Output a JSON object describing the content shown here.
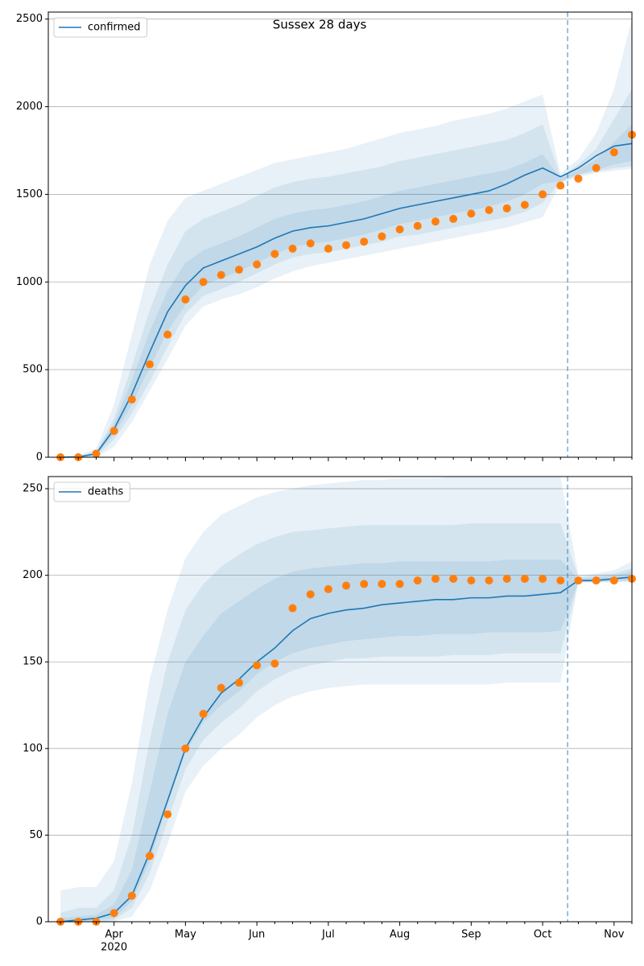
{
  "chart_data": [
    {
      "type": "line",
      "title": "Sussex 28 days",
      "categories": [
        null,
        null,
        null,
        null,
        null,
        null,
        null,
        null,
        null,
        null,
        null,
        null,
        null,
        null,
        null,
        null,
        null,
        null,
        null,
        null,
        null,
        null,
        null,
        null,
        null,
        null,
        null,
        null,
        null,
        null,
        null,
        null,
        null
      ],
      "series": [
        {
          "name": "confirmed",
          "color": "#1f77b4",
          "values": [
            0,
            2,
            20,
            160,
            360,
            600,
            830,
            980,
            1080,
            1120,
            1160,
            1200,
            1250,
            1290,
            1310,
            1320,
            1340,
            1360,
            1390,
            1420,
            1440,
            1460,
            1480,
            1500,
            1520,
            1560,
            1610,
            1650,
            1600,
            1650,
            1720,
            1775,
            1790
          ]
        }
      ],
      "points": {
        "color": "#ff7f0e",
        "values": [
          0,
          0,
          20,
          150,
          330,
          530,
          700,
          900,
          1000,
          1040,
          1070,
          1100,
          1160,
          1190,
          1220,
          1190,
          1210,
          1230,
          1260,
          1300,
          1320,
          1345,
          1360,
          1390,
          1410,
          1420,
          1440,
          1500,
          1550,
          1590,
          1650,
          1740,
          1840
        ]
      },
      "band_color": "#1f77b4",
      "bands": [
        {
          "upper": [
            0,
            10,
            50,
            300,
            700,
            1100,
            1350,
            1480,
            1520,
            1560,
            1600,
            1640,
            1680,
            1700,
            1720,
            1740,
            1760,
            1790,
            1820,
            1850,
            1870,
            1890,
            1920,
            1940,
            1960,
            1990,
            2030,
            2070,
            1620,
            1700,
            1850,
            2100,
            2500
          ],
          "lower": [
            0,
            0,
            0,
            60,
            200,
            380,
            560,
            750,
            860,
            900,
            930,
            970,
            1020,
            1060,
            1090,
            1110,
            1130,
            1150,
            1170,
            1190,
            1210,
            1230,
            1250,
            1270,
            1290,
            1310,
            1340,
            1370,
            1560,
            1600,
            1620,
            1635,
            1645
          ]
        },
        {
          "upper": [
            0,
            5,
            35,
            220,
            520,
            840,
            1100,
            1290,
            1360,
            1400,
            1440,
            1490,
            1540,
            1570,
            1590,
            1600,
            1620,
            1640,
            1660,
            1690,
            1710,
            1730,
            1750,
            1770,
            1790,
            1810,
            1850,
            1900,
            1600,
            1670,
            1760,
            1930,
            2100
          ],
          "lower": [
            0,
            0,
            5,
            100,
            250,
            430,
            630,
            820,
            920,
            960,
            1000,
            1050,
            1100,
            1140,
            1160,
            1170,
            1190,
            1210,
            1230,
            1260,
            1270,
            1290,
            1310,
            1330,
            1350,
            1370,
            1400,
            1450,
            1570,
            1610,
            1630,
            1650,
            1660
          ]
        },
        {
          "upper": [
            0,
            3,
            28,
            190,
            440,
            720,
            950,
            1110,
            1180,
            1220,
            1260,
            1310,
            1360,
            1390,
            1410,
            1420,
            1440,
            1460,
            1490,
            1520,
            1540,
            1560,
            1580,
            1600,
            1620,
            1640,
            1680,
            1730,
            1590,
            1640,
            1700,
            1800,
            1900
          ],
          "lower": [
            0,
            0,
            12,
            130,
            300,
            510,
            720,
            870,
            980,
            1020,
            1060,
            1110,
            1160,
            1200,
            1220,
            1230,
            1250,
            1270,
            1300,
            1330,
            1350,
            1370,
            1390,
            1410,
            1430,
            1460,
            1500,
            1560,
            1575,
            1615,
            1640,
            1670,
            1690
          ]
        }
      ],
      "ylim": [
        0,
        2540
      ],
      "yticks": [
        0,
        500,
        1000,
        1500,
        2000,
        2500
      ],
      "grid": true,
      "legend": "upper left"
    },
    {
      "type": "line",
      "categories": [
        null,
        null,
        null,
        "Apr",
        null,
        null,
        null,
        "May",
        null,
        null,
        null,
        "Jun",
        null,
        null,
        null,
        "Jul",
        null,
        null,
        null,
        "Aug",
        null,
        null,
        null,
        "Sep",
        null,
        null,
        null,
        "Oct",
        null,
        null,
        null,
        "Nov",
        null
      ],
      "x_sublabel": "2020",
      "series": [
        {
          "name": "deaths",
          "color": "#1f77b4",
          "values": [
            0,
            1,
            2,
            5,
            15,
            40,
            70,
            100,
            118,
            132,
            140,
            150,
            158,
            168,
            175,
            178,
            180,
            181,
            183,
            184,
            185,
            186,
            186,
            187,
            187,
            188,
            188,
            189,
            190,
            197,
            197,
            198,
            199
          ]
        }
      ],
      "points": {
        "color": "#ff7f0e",
        "values": [
          0,
          0,
          0,
          5,
          15,
          38,
          62,
          100,
          120,
          135,
          138,
          148,
          149,
          181,
          189,
          192,
          194,
          195,
          195,
          195,
          197,
          198,
          198,
          197,
          197,
          198,
          198,
          198,
          197,
          197,
          197,
          197,
          198
        ]
      },
      "band_color": "#1f77b4",
      "bands": [
        {
          "upper": [
            18,
            20,
            20,
            35,
            80,
            140,
            180,
            210,
            225,
            235,
            240,
            245,
            248,
            250,
            252,
            253,
            254,
            255,
            255,
            256,
            256,
            256,
            257,
            257,
            257,
            257,
            257,
            257,
            257,
            200,
            201,
            203,
            208
          ],
          "lower": [
            0,
            0,
            0,
            0,
            3,
            18,
            45,
            75,
            90,
            100,
            108,
            118,
            125,
            130,
            133,
            135,
            136,
            137,
            137,
            137,
            137,
            137,
            137,
            137,
            137,
            138,
            138,
            138,
            138,
            196,
            196,
            196,
            196
          ]
        },
        {
          "upper": [
            5,
            8,
            8,
            18,
            50,
            105,
            150,
            180,
            195,
            205,
            212,
            218,
            222,
            225,
            226,
            227,
            228,
            229,
            229,
            229,
            229,
            229,
            229,
            230,
            230,
            230,
            230,
            230,
            230,
            199,
            200,
            201,
            204
          ],
          "lower": [
            0,
            0,
            0,
            1,
            8,
            28,
            58,
            88,
            105,
            115,
            123,
            133,
            140,
            145,
            148,
            150,
            152,
            152,
            153,
            153,
            153,
            153,
            154,
            154,
            154,
            155,
            155,
            155,
            155,
            196,
            196,
            197,
            197
          ]
        },
        {
          "upper": [
            2,
            3,
            4,
            10,
            30,
            75,
            120,
            150,
            165,
            178,
            185,
            192,
            198,
            202,
            204,
            205,
            206,
            207,
            207,
            208,
            208,
            208,
            208,
            208,
            208,
            209,
            209,
            209,
            209,
            198,
            199,
            200,
            202
          ],
          "lower": [
            0,
            0,
            1,
            2,
            12,
            35,
            68,
            98,
            115,
            125,
            133,
            143,
            150,
            155,
            158,
            160,
            162,
            163,
            164,
            165,
            165,
            166,
            166,
            166,
            167,
            167,
            167,
            167,
            168,
            196,
            196,
            196,
            197
          ]
        }
      ],
      "ylim": [
        0,
        257
      ],
      "yticks": [
        0,
        50,
        100,
        150,
        200,
        250
      ],
      "grid": true,
      "legend": "upper left"
    }
  ]
}
